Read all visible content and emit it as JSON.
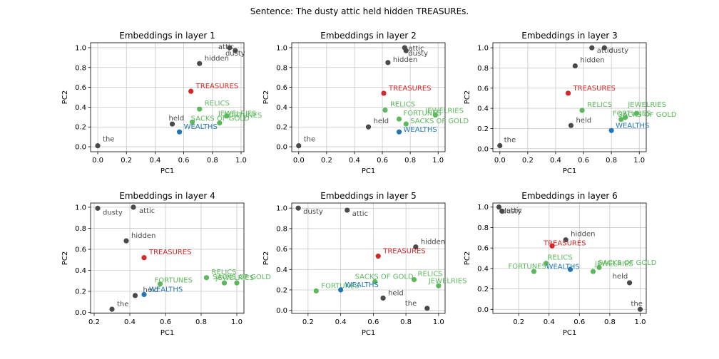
{
  "suptitle": "Sentence: The dusty attic held hidden TREASUREs.",
  "colors": {
    "context": "#4a4a4a",
    "target": "#d62728",
    "related": "#5cb85c",
    "query": "#1f77b4",
    "grid": "#c8c8c8"
  },
  "chart_data": [
    {
      "type": "scatter",
      "title": "Embeddings in layer 1",
      "xlabel": "PC1",
      "ylabel": "PC2",
      "xlim": [
        -0.05,
        1.02
      ],
      "ylim": [
        -0.05,
        1.05
      ],
      "xticks": [
        "0.0",
        "0.2",
        "0.4",
        "0.6",
        "0.8",
        "1.0"
      ],
      "yticks": [
        "0.0",
        "0.2",
        "0.4",
        "0.6",
        "0.8",
        "1.0"
      ],
      "grid": true,
      "points": [
        {
          "label": "the",
          "x": 0.0,
          "y": 0.01,
          "group": "context"
        },
        {
          "label": "dusty",
          "x": 0.96,
          "y": 0.97,
          "group": "context"
        },
        {
          "label": "attic",
          "x": 0.92,
          "y": 1.0,
          "group": "context"
        },
        {
          "label": "hidden",
          "x": 0.71,
          "y": 0.84,
          "group": "context"
        },
        {
          "label": "held",
          "x": 0.52,
          "y": 0.23,
          "group": "context"
        },
        {
          "label": "TREASURES",
          "x": 0.65,
          "y": 0.56,
          "group": "target"
        },
        {
          "label": "RELICS",
          "x": 0.71,
          "y": 0.38,
          "group": "related"
        },
        {
          "label": "JEWELRIES",
          "x": 0.85,
          "y": 0.24,
          "group": "related"
        },
        {
          "label": "FORTUNES",
          "x": 0.9,
          "y": 0.31,
          "group": "related"
        },
        {
          "label": "SACKS OF GOLD",
          "x": 0.66,
          "y": 0.25,
          "group": "related"
        },
        {
          "label": "WEALTHS",
          "x": 0.57,
          "y": 0.15,
          "group": "query"
        }
      ]
    },
    {
      "type": "scatter",
      "title": "Embeddings in layer 2",
      "xlabel": "PC1",
      "ylabel": "PC2",
      "xlim": [
        -0.05,
        1.05
      ],
      "ylim": [
        -0.05,
        1.05
      ],
      "xticks": [
        "0.0",
        "0.2",
        "0.4",
        "0.6",
        "0.8",
        "1.0"
      ],
      "yticks": [
        "0.0",
        "0.2",
        "0.4",
        "0.6",
        "0.8",
        "1.0"
      ],
      "grid": true,
      "points": [
        {
          "label": "the",
          "x": 0.0,
          "y": 0.01,
          "group": "context"
        },
        {
          "label": "dusty",
          "x": 0.77,
          "y": 0.97,
          "group": "context"
        },
        {
          "label": "attic",
          "x": 0.76,
          "y": 1.0,
          "group": "context"
        },
        {
          "label": "hidden",
          "x": 0.64,
          "y": 0.85,
          "group": "context"
        },
        {
          "label": "held",
          "x": 0.5,
          "y": 0.2,
          "group": "context"
        },
        {
          "label": "TREASURES",
          "x": 0.61,
          "y": 0.54,
          "group": "target"
        },
        {
          "label": "RELICS",
          "x": 0.62,
          "y": 0.37,
          "group": "related"
        },
        {
          "label": "JEWELRIES",
          "x": 0.98,
          "y": 0.32,
          "group": "related"
        },
        {
          "label": "FORTUNES",
          "x": 0.72,
          "y": 0.28,
          "group": "related"
        },
        {
          "label": "SACKS OF GOLD",
          "x": 0.77,
          "y": 0.23,
          "group": "related"
        },
        {
          "label": "WEALTHS",
          "x": 0.72,
          "y": 0.15,
          "group": "query"
        }
      ]
    },
    {
      "type": "scatter",
      "title": "Embeddings in layer 3",
      "xlabel": "PC1",
      "ylabel": "PC2",
      "xlim": [
        -0.05,
        1.05
      ],
      "ylim": [
        -0.03,
        1.05
      ],
      "xticks": [
        "0.0",
        "0.2",
        "0.4",
        "0.6",
        "0.8",
        "1.0"
      ],
      "yticks": [
        "0.0",
        "0.2",
        "0.4",
        "0.6",
        "0.8",
        "1.0"
      ],
      "grid": true,
      "points": [
        {
          "label": "the",
          "x": 0.0,
          "y": 0.03,
          "group": "context"
        },
        {
          "label": "dusty",
          "x": 0.75,
          "y": 1.0,
          "group": "context"
        },
        {
          "label": "attic",
          "x": 0.66,
          "y": 1.0,
          "group": "context"
        },
        {
          "label": "hidden",
          "x": 0.54,
          "y": 0.82,
          "group": "context"
        },
        {
          "label": "held",
          "x": 0.51,
          "y": 0.23,
          "group": "context"
        },
        {
          "label": "TREASURES",
          "x": 0.49,
          "y": 0.55,
          "group": "target"
        },
        {
          "label": "RELICS",
          "x": 0.59,
          "y": 0.38,
          "group": "related"
        },
        {
          "label": "JEWELRIES",
          "x": 0.98,
          "y": 0.35,
          "group": "related"
        },
        {
          "label": "FORTUNES",
          "x": 0.87,
          "y": 0.29,
          "group": "related"
        },
        {
          "label": "SACKS OF GOLD",
          "x": 0.9,
          "y": 0.31,
          "group": "related"
        },
        {
          "label": "WEALTHS",
          "x": 0.8,
          "y": 0.18,
          "group": "query"
        }
      ]
    },
    {
      "type": "scatter",
      "title": "Embeddings in layer 4",
      "xlabel": "PC1",
      "ylabel": "PC2",
      "xlim": [
        0.18,
        1.04
      ],
      "ylim": [
        -0.01,
        1.04
      ],
      "xticks": [
        "0.2",
        "0.4",
        "0.6",
        "0.8",
        "1.0"
      ],
      "yticks": [
        "0.0",
        "0.2",
        "0.4",
        "0.6",
        "0.8",
        "1.0"
      ],
      "grid": true,
      "points": [
        {
          "label": "the",
          "x": 0.3,
          "y": 0.03,
          "group": "context"
        },
        {
          "label": "dusty",
          "x": 0.22,
          "y": 0.99,
          "group": "context"
        },
        {
          "label": "attic",
          "x": 0.42,
          "y": 1.0,
          "group": "context"
        },
        {
          "label": "hidden",
          "x": 0.38,
          "y": 0.68,
          "group": "context"
        },
        {
          "label": "held",
          "x": 0.43,
          "y": 0.16,
          "group": "context"
        },
        {
          "label": "TREASURES",
          "x": 0.48,
          "y": 0.52,
          "group": "target"
        },
        {
          "label": "RELICS",
          "x": 0.83,
          "y": 0.33,
          "group": "related"
        },
        {
          "label": "JEWELRIES",
          "x": 0.93,
          "y": 0.28,
          "group": "related"
        },
        {
          "label": "FORTUNES",
          "x": 0.57,
          "y": 0.27,
          "group": "related"
        },
        {
          "label": "SACKS OF GOLD",
          "x": 1.0,
          "y": 0.28,
          "group": "related"
        },
        {
          "label": "WEALTHS",
          "x": 0.48,
          "y": 0.17,
          "group": "query"
        }
      ]
    },
    {
      "type": "scatter",
      "title": "Embeddings in layer 5",
      "xlabel": "PC1",
      "ylabel": "PC2",
      "xlim": [
        0.1,
        1.04
      ],
      "ylim": [
        -0.03,
        1.05
      ],
      "xticks": [
        "0.2",
        "0.4",
        "0.6",
        "0.8",
        "1.0"
      ],
      "yticks": [
        "0.0",
        "0.2",
        "0.4",
        "0.6",
        "0.8",
        "1.0"
      ],
      "grid": true,
      "points": [
        {
          "label": "the",
          "x": 0.93,
          "y": 0.02,
          "group": "context"
        },
        {
          "label": "dusty",
          "x": 0.14,
          "y": 1.0,
          "group": "context"
        },
        {
          "label": "attic",
          "x": 0.44,
          "y": 0.98,
          "group": "context"
        },
        {
          "label": "hidden",
          "x": 0.86,
          "y": 0.62,
          "group": "context"
        },
        {
          "label": "held",
          "x": 0.66,
          "y": 0.12,
          "group": "context"
        },
        {
          "label": "TREASURES",
          "x": 0.63,
          "y": 0.53,
          "group": "target"
        },
        {
          "label": "RELICS",
          "x": 0.85,
          "y": 0.3,
          "group": "related"
        },
        {
          "label": "JEWELRIES",
          "x": 1.0,
          "y": 0.24,
          "group": "related"
        },
        {
          "label": "FORTUNES",
          "x": 0.25,
          "y": 0.19,
          "group": "related"
        },
        {
          "label": "SACKS OF GOLD",
          "x": 0.61,
          "y": 0.28,
          "group": "related"
        },
        {
          "label": "WEALTHS",
          "x": 0.4,
          "y": 0.2,
          "group": "query"
        }
      ]
    },
    {
      "type": "scatter",
      "title": "Embeddings in layer 6",
      "xlabel": "PC1",
      "ylabel": "PC2",
      "xlim": [
        0.03,
        1.04
      ],
      "ylim": [
        -0.04,
        1.04
      ],
      "xticks": [
        "0.2",
        "0.4",
        "0.6",
        "0.8",
        "1.0"
      ],
      "yticks": [
        "0.0",
        "0.2",
        "0.4",
        "0.6",
        "0.8",
        "1.0"
      ],
      "grid": true,
      "points": [
        {
          "label": "the",
          "x": 1.0,
          "y": 0.0,
          "group": "context"
        },
        {
          "label": "dusty",
          "x": 0.07,
          "y": 1.0,
          "group": "context"
        },
        {
          "label": "attic",
          "x": 0.09,
          "y": 0.96,
          "group": "context"
        },
        {
          "label": "hidden",
          "x": 0.51,
          "y": 0.68,
          "group": "context"
        },
        {
          "label": "held",
          "x": 0.93,
          "y": 0.26,
          "group": "context"
        },
        {
          "label": "TREASURES",
          "x": 0.42,
          "y": 0.62,
          "group": "target"
        },
        {
          "label": "RELICS",
          "x": 0.38,
          "y": 0.45,
          "group": "related"
        },
        {
          "label": "JEWELRIES",
          "x": 0.73,
          "y": 0.41,
          "group": "related"
        },
        {
          "label": "FORTUNES",
          "x": 0.3,
          "y": 0.37,
          "group": "related"
        },
        {
          "label": "SACKS OF GOLD",
          "x": 0.69,
          "y": 0.37,
          "group": "related"
        },
        {
          "label": "WEALTHS",
          "x": 0.54,
          "y": 0.39,
          "group": "query"
        }
      ]
    }
  ]
}
